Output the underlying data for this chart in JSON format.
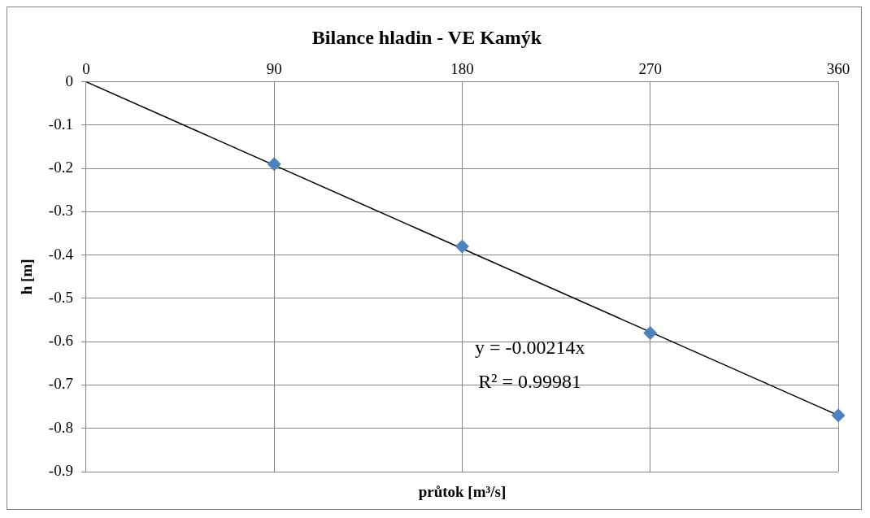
{
  "chart_data": {
    "type": "scatter",
    "title": "Bilance hladin - VE Kamýk",
    "xlabel": "průtok [m³/s]",
    "ylabel": "h [m]",
    "series": [
      {
        "color": "#4f81bd",
        "x": [
          90,
          180,
          270,
          360
        ],
        "values": [
          -0.19,
          -0.38,
          -0.58,
          -0.77
        ],
        "marker": "diamond"
      },
      {
        "type": "line",
        "color": "#000000",
        "x": [
          0,
          360
        ],
        "values": [
          0,
          -0.77
        ],
        "marker": "none"
      }
    ],
    "xlim": [
      0,
      360
    ],
    "xticks": [
      0,
      90,
      180,
      270,
      360
    ],
    "ylim": [
      -0.9,
      0
    ],
    "yticks": [
      0,
      -0.1,
      -0.2,
      -0.3,
      -0.4,
      -0.5,
      -0.6,
      -0.7,
      -0.8,
      -0.9
    ],
    "grid": true,
    "legend": false,
    "annotations": [
      "y = -0.00214x",
      "R² = 0.99981"
    ]
  }
}
